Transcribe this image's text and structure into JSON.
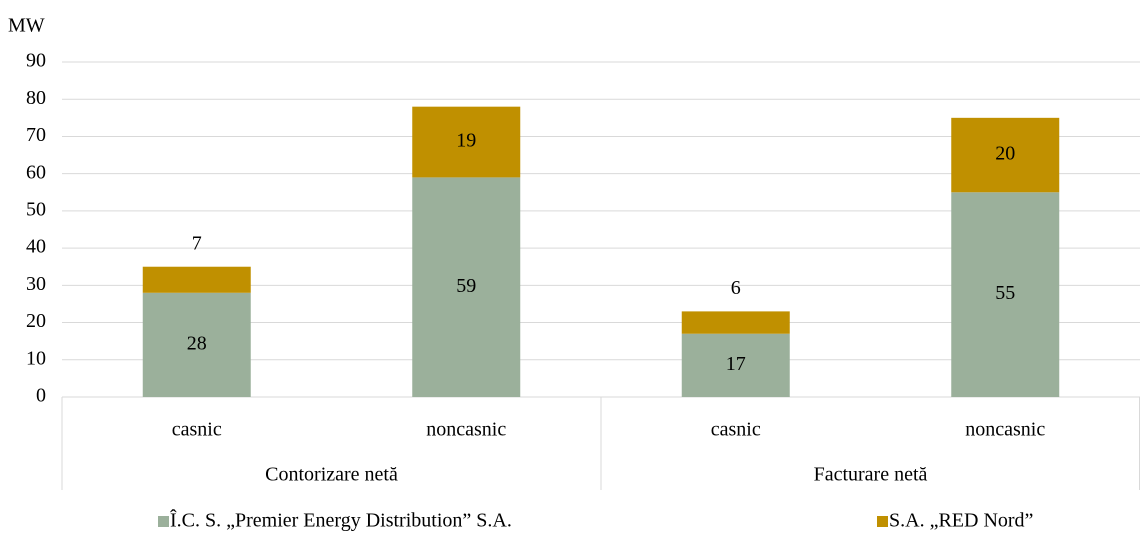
{
  "chart_data": {
    "type": "stacked_bar",
    "y_label": "MW",
    "categories": [
      "casnic",
      "noncasnic",
      "casnic",
      "noncasnic"
    ],
    "groups": [
      "Contorizare netă",
      "Facturare netă"
    ],
    "series": [
      {
        "name": "Î.C. S. „Premier Energy Distribution” S.A.",
        "color": "#9bb09b",
        "values": [
          28,
          59,
          17,
          55
        ]
      },
      {
        "name": "S.A. „RED Nord”",
        "color": "#c09000",
        "values": [
          7,
          19,
          6,
          20
        ]
      }
    ],
    "ylim": [
      0,
      90
    ],
    "yticks": [
      0,
      10,
      20,
      30,
      40,
      50,
      60,
      70,
      80,
      90
    ],
    "grid": true,
    "legend": "bottom"
  }
}
